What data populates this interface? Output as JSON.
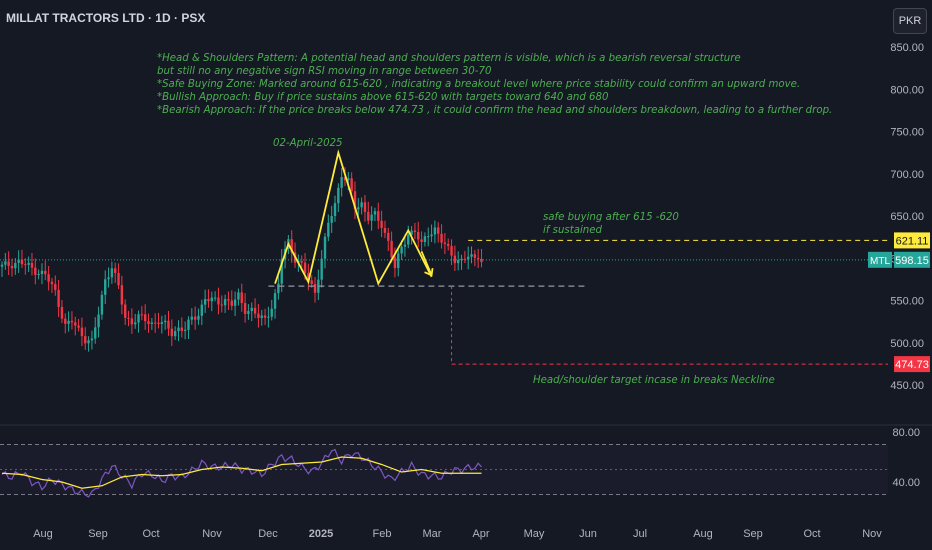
{
  "header": {
    "symbol_title": "MILLAT TRACTORS LTD · 1D · PSX",
    "currency_button": "PKR"
  },
  "annotations": {
    "analysis_lines": [
      "*Head & Shoulders Pattern: A potential head and shoulders pattern is visible, which is a bearish reversal structure",
      "but still no any negative sign RSI moving in range between 30-70",
      "*Safe Buying Zone: Marked around 615-620 , indicating a breakout level where price stability could confirm an upward move.",
      "*Bullish Approach: Buy if price sustains above 615-620  with targets toward 640  and 680",
      "*Bearish Approach: If the price breaks below 474.73 , it could confirm the head and shoulders breakdown, leading to a further drop."
    ],
    "head_date": "02-April-2025",
    "safe_buy_lines": [
      "safe buying after  615 -620",
      "if sustained"
    ],
    "target_note": "Head/shoulder target incase in breaks  Neckline"
  },
  "chart_data": [
    {
      "type": "candlestick",
      "symbol": "MTL",
      "title": "MILLAT TRACTORS LTD · 1D · PSX",
      "currency": "PKR",
      "x_axis_labels": [
        "Aug",
        "Sep",
        "Oct",
        "Nov",
        "Dec",
        "2025",
        "Feb",
        "Mar",
        "Apr",
        "May",
        "Jun",
        "Jul",
        "Aug",
        "Sep",
        "Oct",
        "Nov"
      ],
      "y_ticks": [
        850,
        800,
        750,
        700,
        650,
        600,
        550,
        500,
        450
      ],
      "ylim": [
        430,
        870
      ],
      "last_price": 598.15,
      "price_labels": [
        {
          "name": "breakout level",
          "value": 621.11,
          "color": "#ffeb3b"
        },
        {
          "name": "MTL",
          "value": 598.15,
          "color": "#26a69a"
        },
        {
          "name": "target",
          "value": 474.73,
          "color": "#f23645"
        }
      ],
      "neckline": 567,
      "grid": false,
      "price_path": [
        [
          0,
          590
        ],
        [
          5,
          596
        ],
        [
          9,
          588
        ],
        [
          13,
          580
        ],
        [
          16,
          560
        ],
        [
          19,
          520
        ],
        [
          21,
          525
        ],
        [
          23,
          515
        ],
        [
          25,
          505
        ],
        [
          27,
          500
        ],
        [
          29,
          535
        ],
        [
          31,
          575
        ],
        [
          33,
          590
        ],
        [
          35,
          565
        ],
        [
          37,
          530
        ],
        [
          39,
          525
        ],
        [
          41,
          530
        ],
        [
          43,
          527
        ],
        [
          45,
          523
        ],
        [
          47,
          526
        ],
        [
          49,
          520
        ],
        [
          51,
          512
        ],
        [
          53,
          517
        ],
        [
          55,
          516
        ],
        [
          57,
          528
        ],
        [
          59,
          535
        ],
        [
          61,
          552
        ],
        [
          63,
          550
        ],
        [
          65,
          548
        ],
        [
          67,
          551
        ],
        [
          69,
          545
        ],
        [
          71,
          555
        ],
        [
          73,
          540
        ],
        [
          75,
          538
        ],
        [
          77,
          530
        ],
        [
          79,
          528
        ],
        [
          81,
          544
        ],
        [
          83,
          567
        ],
        [
          84,
          600
        ],
        [
          86,
          620
        ],
        [
          88,
          600
        ],
        [
          90,
          590
        ],
        [
          92,
          575
        ],
        [
          94,
          560
        ],
        [
          96,
          600
        ],
        [
          98,
          640
        ],
        [
          100,
          665
        ],
        [
          102,
          700
        ],
        [
          104,
          690
        ],
        [
          106,
          660
        ],
        [
          108,
          665
        ],
        [
          110,
          648
        ],
        [
          112,
          650
        ],
        [
          114,
          640
        ],
        [
          116,
          620
        ],
        [
          118,
          588
        ],
        [
          120,
          612
        ],
        [
          122,
          630
        ],
        [
          124,
          632
        ],
        [
          126,
          615
        ],
        [
          128,
          630
        ],
        [
          130,
          635
        ],
        [
          132,
          620
        ],
        [
          134,
          610
        ],
        [
          136,
          600
        ],
        [
          138,
          596
        ],
        [
          140,
          602
        ],
        [
          142,
          600
        ],
        [
          143,
          605
        ],
        [
          144,
          598
        ]
      ],
      "overlay_shapes": {
        "head_shoulders_points": [
          [
            82,
            570
          ],
          [
            86,
            617
          ],
          [
            92,
            572
          ],
          [
            101,
            725
          ],
          [
            113,
            570
          ],
          [
            122,
            633
          ],
          [
            129,
            578
          ]
        ],
        "target_arrow": {
          "from": [
            126,
            608
          ],
          "to": [
            129,
            580
          ]
        }
      }
    },
    {
      "type": "line",
      "name": "RSI",
      "y_ticks": [
        80,
        40
      ],
      "ylim": [
        10,
        90
      ],
      "bands": [
        70,
        30
      ],
      "mid": 50,
      "rsi_values": [
        [
          0,
          46
        ],
        [
          3,
          44
        ],
        [
          6,
          48
        ],
        [
          9,
          40
        ],
        [
          12,
          36
        ],
        [
          15,
          42
        ],
        [
          18,
          38
        ],
        [
          21,
          34
        ],
        [
          24,
          31
        ],
        [
          27,
          30
        ],
        [
          30,
          42
        ],
        [
          33,
          53
        ],
        [
          36,
          45
        ],
        [
          39,
          38
        ],
        [
          42,
          47
        ],
        [
          45,
          46
        ],
        [
          48,
          41
        ],
        [
          51,
          45
        ],
        [
          54,
          44
        ],
        [
          57,
          49
        ],
        [
          60,
          55
        ],
        [
          63,
          52
        ],
        [
          66,
          52
        ],
        [
          69,
          54
        ],
        [
          72,
          50
        ],
        [
          75,
          49
        ],
        [
          78,
          46
        ],
        [
          81,
          54
        ],
        [
          84,
          60
        ],
        [
          87,
          58
        ],
        [
          90,
          52
        ],
        [
          93,
          48
        ],
        [
          96,
          55
        ],
        [
          99,
          66
        ],
        [
          102,
          57
        ],
        [
          105,
          63
        ],
        [
          108,
          60
        ],
        [
          111,
          54
        ],
        [
          114,
          48
        ],
        [
          117,
          42
        ],
        [
          120,
          48
        ],
        [
          123,
          53
        ],
        [
          126,
          46
        ],
        [
          129,
          45
        ],
        [
          132,
          44
        ],
        [
          135,
          49
        ],
        [
          138,
          50
        ],
        [
          141,
          52
        ],
        [
          144,
          52
        ]
      ],
      "rsi_ma": [
        [
          0,
          47
        ],
        [
          6,
          46
        ],
        [
          12,
          42
        ],
        [
          18,
          40
        ],
        [
          24,
          35
        ],
        [
          30,
          37
        ],
        [
          36,
          44
        ],
        [
          42,
          46
        ],
        [
          48,
          45
        ],
        [
          54,
          46
        ],
        [
          60,
          50
        ],
        [
          66,
          52
        ],
        [
          72,
          51
        ],
        [
          78,
          49
        ],
        [
          84,
          54
        ],
        [
          90,
          55
        ],
        [
          96,
          56
        ],
        [
          102,
          60
        ],
        [
          108,
          59
        ],
        [
          114,
          54
        ],
        [
          120,
          48
        ],
        [
          126,
          50
        ],
        [
          132,
          47
        ],
        [
          138,
          47
        ],
        [
          144,
          47
        ]
      ]
    }
  ],
  "colors": {
    "background": "#151924",
    "up": "#26a69a",
    "down": "#f23645",
    "annotation_green": "#4caf50",
    "pattern_yellow": "#ffeb3b",
    "rsi_line": "#7e57c2",
    "rsi_ma": "#ffeb3b",
    "axis_text": "#b2b5be"
  }
}
